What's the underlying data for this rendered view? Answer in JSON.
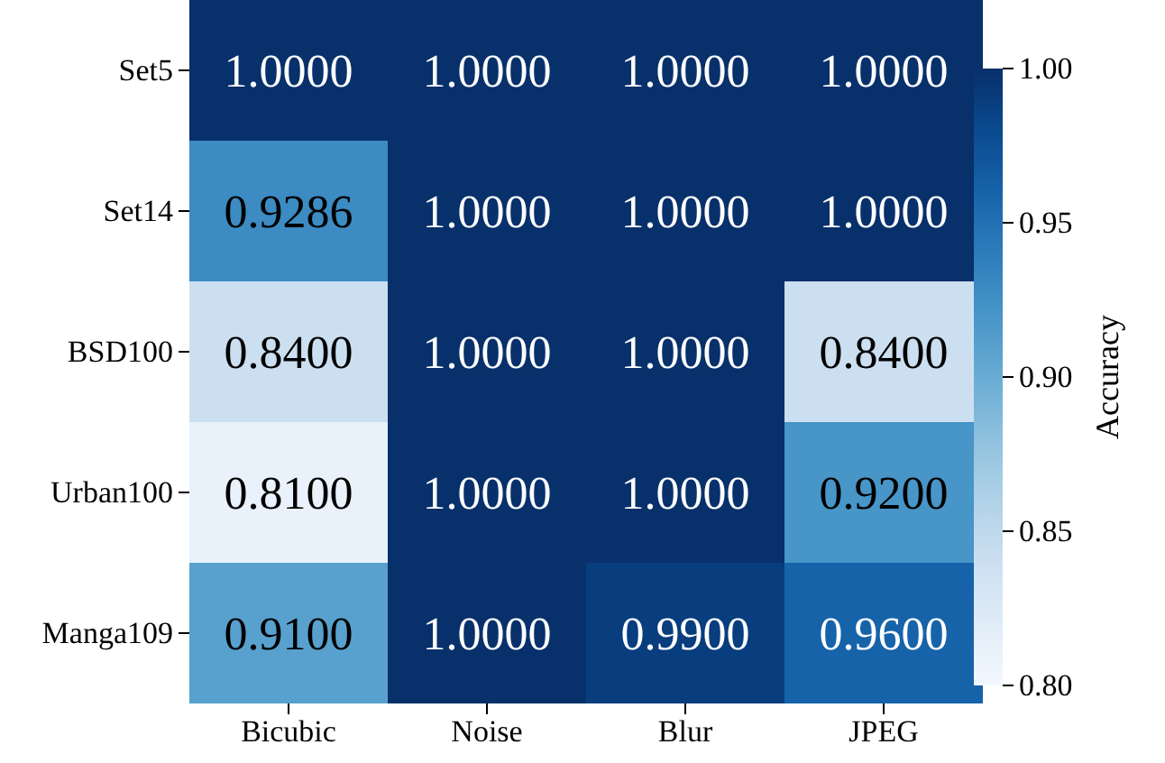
{
  "chart_data": {
    "type": "heatmap",
    "categories": [
      "Bicubic",
      "Noise",
      "Blur",
      "JPEG"
    ],
    "y_categories": [
      "Set5",
      "Set14",
      "BSD100",
      "Urban100",
      "Manga109"
    ],
    "cells": [
      [
        1,
        1,
        1,
        1
      ],
      [
        0.9286,
        1,
        1,
        1
      ],
      [
        0.84,
        1,
        1,
        0.84
      ],
      [
        0.81,
        1,
        1,
        0.92
      ],
      [
        0.91,
        1,
        0.99,
        0.96
      ]
    ],
    "cell_labels": [
      [
        "1.0000",
        "1.0000",
        "1.0000",
        "1.0000"
      ],
      [
        "0.9286",
        "1.0000",
        "1.0000",
        "1.0000"
      ],
      [
        "0.8400",
        "1.0000",
        "1.0000",
        "0.8400"
      ],
      [
        "0.8100",
        "1.0000",
        "1.0000",
        "0.9200"
      ],
      [
        "0.9100",
        "1.0000",
        "0.9900",
        "0.9600"
      ]
    ],
    "clim": [
      0.8,
      1
    ],
    "cticks": [
      {
        "value": 0.8,
        "label": "0.80"
      },
      {
        "value": 0.85,
        "label": "0.85"
      },
      {
        "value": 0.9,
        "label": "0.90"
      },
      {
        "value": 0.95,
        "label": "0.95"
      },
      {
        "value": 1,
        "label": "1.00"
      }
    ],
    "clabel": "Accuracy"
  }
}
